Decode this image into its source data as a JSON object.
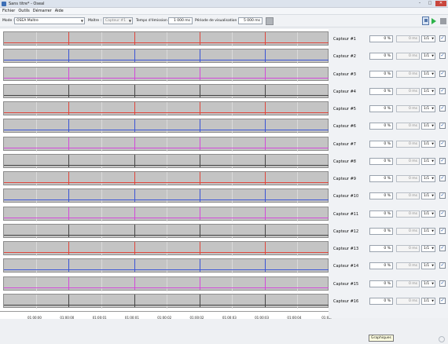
{
  "window": {
    "title": "Sans titre* - Oseal"
  },
  "menu": [
    "Fichier",
    "Outils",
    "Démarrer",
    "Aide"
  ],
  "toolbar": {
    "mode_label": "Mode :",
    "mode_value": "OSEA Maître",
    "master_label": "Maître :",
    "master_value": "Capteur #1",
    "emission_label": "Temps d'émission :",
    "emission_value": "1 000 ms",
    "period_label": "Période de visualisation :",
    "period_value": "5 000 ms"
  },
  "colors": {
    "red": "#e0453a",
    "blue": "#3b55d6",
    "magenta": "#d24bd8",
    "dark": "#444444",
    "plot_bg": "#c4c4c4"
  },
  "chart_data": {
    "type": "line",
    "x_tick_labels": [
      "01:00:00",
      "01:00:00",
      "01:00:01",
      "01:00:01",
      "01:00:02",
      "01:00:02",
      "01:00:03",
      "01:00:03",
      "01:00:04",
      "01:00:"
    ],
    "spike_x_fractions": [
      0.199,
      0.4,
      0.601,
      0.802
    ],
    "grid_x_fractions": [
      0.1,
      0.3,
      0.5,
      0.7,
      0.9
    ],
    "series": [
      {
        "name": "Capteur #1",
        "color": "red"
      },
      {
        "name": "Capteur #2",
        "color": "blue"
      },
      {
        "name": "Capteur #3",
        "color": "magenta"
      },
      {
        "name": "Capteur #4",
        "color": "dark"
      },
      {
        "name": "Capteur #5",
        "color": "red"
      },
      {
        "name": "Capteur #6",
        "color": "blue"
      },
      {
        "name": "Capteur #7",
        "color": "magenta"
      },
      {
        "name": "Capteur #8",
        "color": "dark"
      },
      {
        "name": "Capteur #9",
        "color": "red"
      },
      {
        "name": "Capteur #10",
        "color": "blue"
      },
      {
        "name": "Capteur #11",
        "color": "magenta"
      },
      {
        "name": "Capteur #12",
        "color": "dark"
      },
      {
        "name": "Capteur #13",
        "color": "red"
      },
      {
        "name": "Capteur #14",
        "color": "blue"
      },
      {
        "name": "Capteur #15",
        "color": "magenta"
      },
      {
        "name": "Capteur #16",
        "color": "dark"
      }
    ]
  },
  "sensors": [
    {
      "label": "Capteur #1",
      "pct": "0 %",
      "ms": "0 ms",
      "ratio": "1/1",
      "checked": "✓"
    },
    {
      "label": "Capteur #2",
      "pct": "0 %",
      "ms": "0 ms",
      "ratio": "1/1",
      "checked": "✓"
    },
    {
      "label": "Capteur #3",
      "pct": "0 %",
      "ms": "0 ms",
      "ratio": "1/1",
      "checked": "✓"
    },
    {
      "label": "Capteur #4",
      "pct": "0 %",
      "ms": "0 ms",
      "ratio": "1/1",
      "checked": "✓"
    },
    {
      "label": "Capteur #5",
      "pct": "0 %",
      "ms": "0 ms",
      "ratio": "1/1",
      "checked": "✓"
    },
    {
      "label": "Capteur #6",
      "pct": "0 %",
      "ms": "0 ms",
      "ratio": "1/1",
      "checked": "✓"
    },
    {
      "label": "Capteur #7",
      "pct": "0 %",
      "ms": "0 ms",
      "ratio": "1/1",
      "checked": "✓"
    },
    {
      "label": "Capteur #8",
      "pct": "0 %",
      "ms": "0 ms",
      "ratio": "1/1",
      "checked": "✓"
    },
    {
      "label": "Capteur #9",
      "pct": "0 %",
      "ms": "0 ms",
      "ratio": "1/1",
      "checked": "✓"
    },
    {
      "label": "Capteur #10",
      "pct": "0 %",
      "ms": "0 ms",
      "ratio": "1/1",
      "checked": "✓"
    },
    {
      "label": "Capteur #11",
      "pct": "0 %",
      "ms": "0 ms",
      "ratio": "1/1",
      "checked": "✓"
    },
    {
      "label": "Capteur #12",
      "pct": "0 %",
      "ms": "0 ms",
      "ratio": "1/1",
      "checked": "✓"
    },
    {
      "label": "Capteur #13",
      "pct": "0 %",
      "ms": "0 ms",
      "ratio": "1/1",
      "checked": "✓"
    },
    {
      "label": "Capteur #14",
      "pct": "0 %",
      "ms": "0 ms",
      "ratio": "1/1",
      "checked": "✓"
    },
    {
      "label": "Capteur #15",
      "pct": "0 %",
      "ms": "0 ms",
      "ratio": "1/1",
      "checked": "✓"
    },
    {
      "label": "Capteur #16",
      "pct": "0 %",
      "ms": "0 ms",
      "ratio": "1/1",
      "checked": "✓"
    }
  ],
  "tooltip": "Graphiques"
}
